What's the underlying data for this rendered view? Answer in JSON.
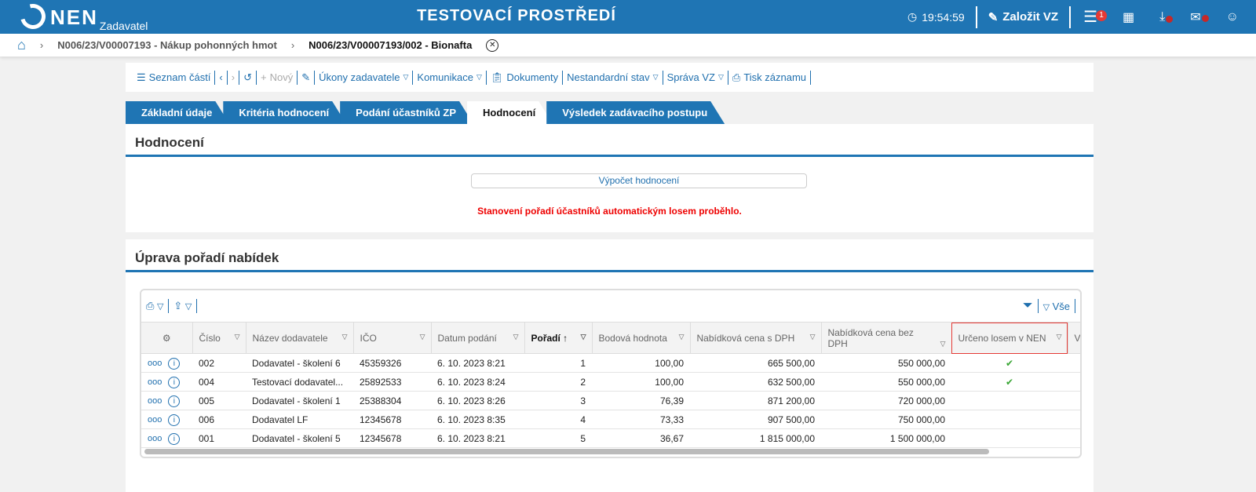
{
  "header": {
    "logo": "NEN",
    "logo_sub": "Zadavatel",
    "env": "TESTOVACÍ PROSTŘEDÍ",
    "time": "19:54:59",
    "create": "Založit VZ",
    "menu_badge": "1"
  },
  "breadcrumb": [
    "N006/23/V00007193 - Nákup pohonných hmot",
    "N006/23/V00007193/002 - Bionafta"
  ],
  "toolbar": {
    "list": "Seznam částí",
    "new": "Nový",
    "acts": "Úkony zadavatele",
    "comm": "Komunikace",
    "docs": "Dokumenty",
    "nonstd": "Nestandardní stav",
    "mgmt": "Správa VZ",
    "print": "Tisk záznamu"
  },
  "tabs": [
    "Základní údaje",
    "Kritéria hodnocení",
    "Podání účastníků ZP",
    "Hodnocení",
    "Výsledek zadávacího postupu"
  ],
  "eval": {
    "title": "Hodnocení",
    "button": "Výpočet hodnocení",
    "message": "Stanovení pořadí účastníků automatickým losem proběhlo."
  },
  "order": {
    "title": "Úprava pořadí nabídek",
    "filter_all": "Vše",
    "columns": [
      "Číslo",
      "Název dodavatele",
      "IČO",
      "Datum podání",
      "Pořadí",
      "Bodová hodnota",
      "Nabídková cena s DPH",
      "Nabídková cena bez DPH",
      "Určeno losem v NEN",
      "Vy"
    ],
    "rows": [
      [
        "002",
        "Dodavatel - školení 6",
        "45359326",
        "6. 10. 2023 8:21",
        "1",
        "100,00",
        "665 500,00",
        "550 000,00",
        "✔"
      ],
      [
        "004",
        "Testovací dodavatel...",
        "25892533",
        "6. 10. 2023 8:24",
        "2",
        "100,00",
        "632 500,00",
        "550 000,00",
        "✔"
      ],
      [
        "005",
        "Dodavatel - školení 1",
        "25388304",
        "6. 10. 2023 8:26",
        "3",
        "76,39",
        "871 200,00",
        "720 000,00",
        ""
      ],
      [
        "006",
        "Dodavatel LF",
        "12345678",
        "6. 10. 2023 8:35",
        "4",
        "73,33",
        "907 500,00",
        "750 000,00",
        ""
      ],
      [
        "001",
        "Dodavatel - školení 5",
        "12345678",
        "6. 10. 2023 8:21",
        "5",
        "36,67",
        "1 815 000,00",
        "1 500 000,00",
        ""
      ]
    ]
  }
}
